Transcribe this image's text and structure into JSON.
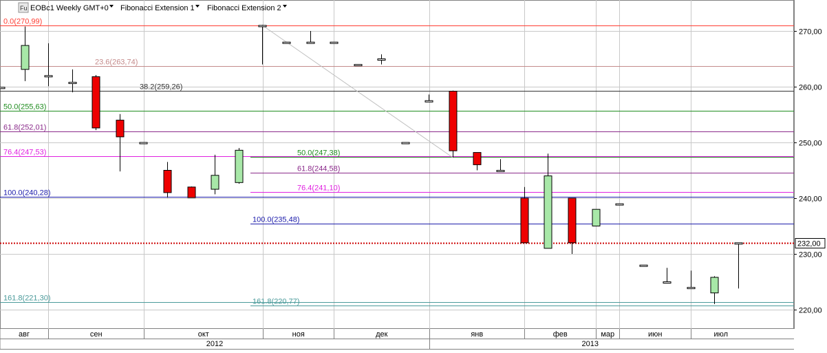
{
  "toolbar": {
    "badge": "Fu",
    "symbol_label": "EOBc1 Weekly GMT+0",
    "fib1_label": "Fibonacci Extension 1",
    "fib2_label": "Fibonacci Extension 2"
  },
  "chart_data": {
    "type": "candlestick",
    "title": "EOBc1 Weekly GMT+0",
    "ylim": [
      216,
      275
    ],
    "y_ticks": [
      {
        "value": 220,
        "label": "220,00"
      },
      {
        "value": 230,
        "label": "230,00"
      },
      {
        "value": 240,
        "label": "240,00"
      },
      {
        "value": 250,
        "label": "250,00"
      },
      {
        "value": 260,
        "label": "260,00"
      },
      {
        "value": 270,
        "label": "270,00"
      }
    ],
    "current_price": {
      "value": 232.0,
      "label": "232,00",
      "color": "#cc0000"
    },
    "candles": [
      {
        "i": 0,
        "o": 259.9,
        "h": 259.9,
        "l": 259.9,
        "c": 259.9
      },
      {
        "i": 1,
        "o": 263.1,
        "h": 270.8,
        "l": 261.0,
        "c": 267.4
      },
      {
        "i": 2,
        "o": 262.0,
        "h": 267.8,
        "l": 260.1,
        "c": 262.0
      },
      {
        "i": 3,
        "o": 260.8,
        "h": 263.1,
        "l": 259.0,
        "c": 260.8
      },
      {
        "i": 4,
        "o": 261.8,
        "h": 262.1,
        "l": 252.2,
        "c": 252.6
      },
      {
        "i": 5,
        "o": 254.0,
        "h": 255.1,
        "l": 244.8,
        "c": 251.0
      },
      {
        "i": 6,
        "o": 250.0,
        "h": 250.0,
        "l": 250.0,
        "c": 250.0
      },
      {
        "i": 7,
        "o": 245.0,
        "h": 246.5,
        "l": 240.1,
        "c": 241.0
      },
      {
        "i": 8,
        "o": 242.0,
        "h": 242.1,
        "l": 240.1,
        "c": 240.1
      },
      {
        "i": 9,
        "o": 241.6,
        "h": 247.8,
        "l": 240.7,
        "c": 244.1
      },
      {
        "i": 10,
        "o": 242.8,
        "h": 249.0,
        "l": 242.6,
        "c": 248.6
      },
      {
        "i": 11,
        "o": 271.0,
        "h": 271.1,
        "l": 264.0,
        "c": 271.0
      },
      {
        "i": 12,
        "o": 268.0,
        "h": 268.0,
        "l": 268.0,
        "c": 268.0
      },
      {
        "i": 13,
        "o": 268.0,
        "h": 270.0,
        "l": 268.0,
        "c": 268.0
      },
      {
        "i": 14,
        "o": 268.0,
        "h": 268.0,
        "l": 268.0,
        "c": 268.0
      },
      {
        "i": 15,
        "o": 264.0,
        "h": 264.0,
        "l": 264.0,
        "c": 264.0
      },
      {
        "i": 16,
        "o": 265.0,
        "h": 265.8,
        "l": 264.0,
        "c": 265.0
      },
      {
        "i": 17,
        "o": 250.0,
        "h": 250.0,
        "l": 250.0,
        "c": 250.0
      },
      {
        "i": 18,
        "o": 257.5,
        "h": 258.6,
        "l": 257.4,
        "c": 257.5
      },
      {
        "i": 19,
        "o": 259.2,
        "h": 259.3,
        "l": 247.3,
        "c": 248.5
      },
      {
        "i": 20,
        "o": 248.2,
        "h": 248.2,
        "l": 245.0,
        "c": 246.0
      },
      {
        "i": 21,
        "o": 245.0,
        "h": 247.0,
        "l": 245.0,
        "c": 245.0
      },
      {
        "i": 22,
        "o": 240.0,
        "h": 242.0,
        "l": 232.0,
        "c": 232.0
      },
      {
        "i": 23,
        "o": 231.0,
        "h": 248.0,
        "l": 231.0,
        "c": 244.0
      },
      {
        "i": 24,
        "o": 240.0,
        "h": 240.0,
        "l": 230.0,
        "c": 232.0
      },
      {
        "i": 25,
        "o": 235.0,
        "h": 238.0,
        "l": 235.0,
        "c": 238.0
      },
      {
        "i": 26,
        "o": 239.0,
        "h": 239.0,
        "l": 239.0,
        "c": 239.0
      },
      {
        "i": 27,
        "o": 228.0,
        "h": 228.0,
        "l": 228.0,
        "c": 228.0
      },
      {
        "i": 28,
        "o": 225.0,
        "h": 227.5,
        "l": 225.0,
        "c": 225.0
      },
      {
        "i": 29,
        "o": 224.0,
        "h": 227.0,
        "l": 224.0,
        "c": 224.0
      },
      {
        "i": 30,
        "o": 223.0,
        "h": 226.0,
        "l": 221.0,
        "c": 225.8
      },
      {
        "i": 31,
        "o": 232.0,
        "h": 232.0,
        "l": 223.8,
        "c": 232.0
      }
    ],
    "fib_extension_1": {
      "color_labels_note": "",
      "levels": [
        {
          "label": "0.0(270,99)",
          "value": 270.99,
          "color": "#ff3b30"
        },
        {
          "label": "23.6(263,74)",
          "value": 263.74,
          "color": "#c48a8a"
        },
        {
          "label": "38.2(259,26)",
          "value": 259.26,
          "color": "#333333"
        },
        {
          "label": "50.0(255,63)",
          "value": 255.63,
          "color": "#1e8c1e"
        },
        {
          "label": "61.8(252,01)",
          "value": 252.01,
          "color": "#8a2a8a"
        },
        {
          "label": "76.4(247,53)",
          "value": 247.53,
          "color": "#e020e0"
        },
        {
          "label": "100.0(240,28)",
          "value": 240.28,
          "color": "#1a1aaa"
        },
        {
          "label": "161.8(221,30)",
          "value": 221.3,
          "color": "#4a9a9a"
        }
      ]
    },
    "fib_extension_2": {
      "levels": [
        {
          "label": "50.0(247,38)",
          "value": 247.38,
          "color": "#1e8c1e"
        },
        {
          "label": "61.8(244,58)",
          "value": 244.58,
          "color": "#8a2a8a"
        },
        {
          "label": "76.4(241,10)",
          "value": 241.1,
          "color": "#e020e0"
        },
        {
          "label": "100.0(235,48)",
          "value": 235.48,
          "color": "#1a1aaa"
        },
        {
          "label": "161.8(220,77)",
          "value": 220.77,
          "color": "#4a9a9a"
        }
      ]
    },
    "trend_line": {
      "from": {
        "i": 11,
        "value": 271.0
      },
      "to": {
        "i": 19,
        "value": 247.3
      }
    },
    "months": [
      {
        "label": "авг",
        "from": 0,
        "to": 2
      },
      {
        "label": "сен",
        "from": 2,
        "to": 6
      },
      {
        "label": "окт",
        "from": 6,
        "to": 11
      },
      {
        "label": "ноя",
        "from": 11,
        "to": 14
      },
      {
        "label": "дек",
        "from": 14,
        "to": 18
      },
      {
        "label": "янв",
        "from": 18,
        "to": 22
      },
      {
        "label": "фев",
        "from": 22,
        "to": 25
      },
      {
        "label": "мар",
        "from": 25,
        "to": 26
      },
      {
        "label": "июн",
        "from": 26,
        "to": 29
      },
      {
        "label": "июл",
        "from": 29,
        "to": 31.5
      }
    ],
    "years": [
      {
        "label": "2012",
        "from": 0,
        "to": 18
      },
      {
        "label": "2013",
        "from": 18,
        "to": 31.5
      }
    ],
    "colors": {
      "up": "#a8e8a8",
      "down": "#ee0000",
      "grid": "#c8c8c8",
      "axis": "#808080"
    }
  }
}
